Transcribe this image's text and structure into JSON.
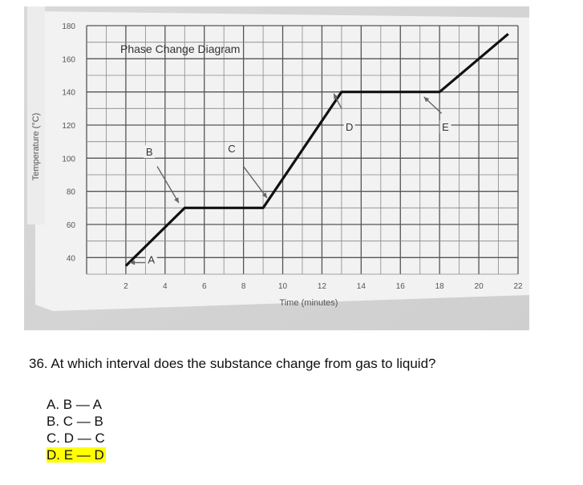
{
  "chart_data": {
    "type": "line",
    "title": "Phase Change Diagram",
    "xlabel": "Time (minutes)",
    "ylabel": "Temperature (°C)",
    "x_ticks": [
      "2",
      "4",
      "6",
      "8",
      "10",
      "12",
      "14",
      "16",
      "18",
      "20",
      "22"
    ],
    "y_ticks": [
      "40",
      "60",
      "80",
      "100",
      "120",
      "140",
      "160",
      "180"
    ],
    "xlim": [
      0,
      22
    ],
    "ylim": [
      30,
      180
    ],
    "grid": true,
    "series": [
      {
        "x": [
          2,
          5,
          9,
          13,
          18,
          21.5
        ],
        "y": [
          35,
          70,
          70,
          140,
          140,
          175
        ]
      }
    ],
    "labels": [
      "A",
      "B",
      "C",
      "D",
      "E"
    ]
  },
  "question": {
    "text": "36.  At which interval does the substance change from gas to liquid?",
    "choices": [
      {
        "letter": "A.",
        "text": "B — A"
      },
      {
        "letter": "B.",
        "text": "C — B"
      },
      {
        "letter": "C.",
        "text": "D — C"
      },
      {
        "letter": "D.",
        "text": "E — D"
      }
    ],
    "highlight_color": "#ffff00"
  }
}
